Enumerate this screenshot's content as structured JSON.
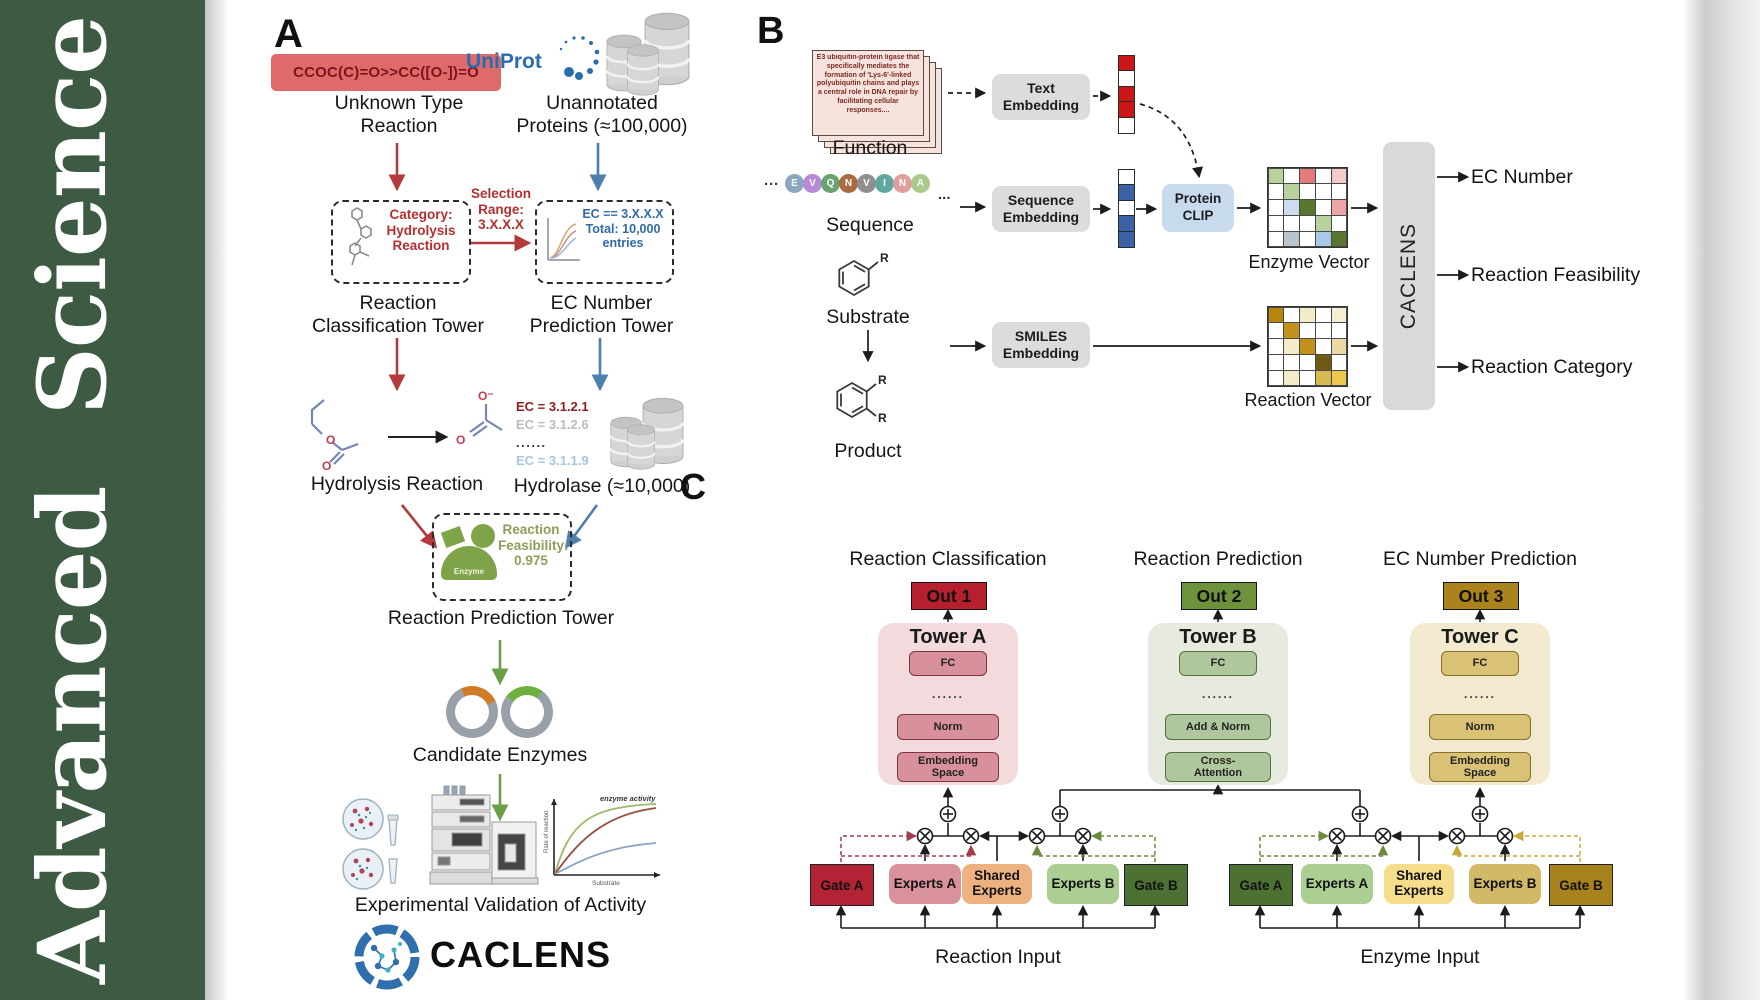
{
  "sidebar": {
    "journal_title": "Advanced Science"
  },
  "panelA": {
    "label": "A",
    "smiles": "CCOC(C)=O>>CC([O-])=O",
    "uniprot": "UniProt",
    "unknown_reaction": "Unknown Type\nReaction",
    "unannotated_proteins": "Unannotated\nProteins (≈100,000)",
    "selection_range": "Selection\nRange:\n3.X.X.X",
    "category": "Category:\nHydrolysis\nReaction",
    "ec_filter": "EC == 3.X.X.X\nTotal: 10,000\nentries",
    "classification_tower": "Reaction\nClassification Tower",
    "ec_tower": "EC Number\nPrediction Tower",
    "hydrolysis_reaction": "Hydrolysis Reaction",
    "ec_list": [
      "EC = 3.1.2.1",
      "EC = 3.1.2.6",
      "......",
      "EC = 3.1.1.9"
    ],
    "hydrolase": "Hydrolase (≈10,000)",
    "enzyme_label": "Enzyme",
    "feasibility": "Reaction\nFeasibility:\n0.975",
    "prediction_tower": "Reaction Prediction Tower",
    "candidate_enzymes": "Candidate Enzymes",
    "validation": "Experimental Validation of Activity",
    "logo_text": "CACLENS",
    "atoms": {
      "ester_o1": "O",
      "ester_o2": "O",
      "acetate_o_minus": "O⁻",
      "acetate_o": "O"
    },
    "plot": {
      "annotation": "enzyme activity",
      "ylabel": "Rate of reaction",
      "xlabel": "Substrate"
    }
  },
  "panelB": {
    "label": "B",
    "function_text": "E3 ubiquitin-protein ligase that specifically mediates the formation of 'Lys-6'-linked polyubiquitin chains and plays a central role in DNA repair by facilitating cellular responses....",
    "function_label": "Function",
    "ellipsis_left": "···",
    "ellipsis_right": "...",
    "residues": [
      {
        "letter": "E",
        "color": "#8ba6bf"
      },
      {
        "letter": "V",
        "color": "#b78ad6"
      },
      {
        "letter": "Q",
        "color": "#69a46e"
      },
      {
        "letter": "N",
        "color": "#a96a40"
      },
      {
        "letter": "V",
        "color": "#8f8f8f"
      },
      {
        "letter": "I",
        "color": "#5fa8a0"
      },
      {
        "letter": "N",
        "color": "#de9f9c"
      },
      {
        "letter": "A",
        "color": "#aac98c"
      }
    ],
    "sequence_label": "Sequence",
    "substrate_label": "Substrate",
    "product_label": "Product",
    "substrate_r": "R",
    "product_r1": "R",
    "product_r2": "R",
    "text_embedding": "Text\nEmbedding",
    "sequence_embedding": "Sequence\nEmbedding",
    "smiles_embedding": "SMILES\nEmbedding",
    "protein_clip": "Protein\nCLIP",
    "enzyme_vector_label": "Enzyme Vector",
    "reaction_vector_label": "Reaction Vector",
    "caclens": "CACLENS",
    "outputs": [
      "EC Number",
      "Reaction Feasibility",
      "Reaction Category"
    ],
    "text_vector": [
      "#cc1717",
      "#ffffff",
      "#cc1717",
      "#cc1717",
      "#ffffff"
    ],
    "sequence_vector": [
      "#ffffff",
      "#3a62a4",
      "#ffffff",
      "#3a62a4",
      "#3a62a4"
    ],
    "enzyme_grid": [
      [
        "#b7d29b",
        "#ffffff",
        "#e27b7b",
        "#ffffff",
        "#f4c9c9"
      ],
      [
        "#ffffff",
        "#b7d29b",
        "#ffffff",
        "#ffffff",
        "#ffffff"
      ],
      [
        "#ffffff",
        "#ccdcee",
        "#59772f",
        "#ffffff",
        "#eda5a5"
      ],
      [
        "#ffffff",
        "#ffffff",
        "#ffffff",
        "#b7d29b",
        "#ffffff"
      ],
      [
        "#ffffff",
        "#b9c4cc",
        "#ffffff",
        "#a9c9e8",
        "#59772f"
      ]
    ],
    "reaction_grid": [
      [
        "#b8860b",
        "#ffffff",
        "#f4ecc8",
        "#ffffff",
        "#f6eed2"
      ],
      [
        "#ffffff",
        "#c3921c",
        "#ffffff",
        "#ffffff",
        "#ffffff"
      ],
      [
        "#ffffff",
        "#f4ecc8",
        "#c3921c",
        "#ffffff",
        "#ead9a4"
      ],
      [
        "#ffffff",
        "#ffffff",
        "#ffffff",
        "#6e5a12",
        "#ffffff"
      ],
      [
        "#ffffff",
        "#f4ecc8",
        "#ffffff",
        "#d6ba50",
        "#ecc94e"
      ]
    ]
  },
  "panelC": {
    "label": "C",
    "towers": [
      {
        "title": "Reaction Classification",
        "out": "Out 1",
        "name": "Tower A",
        "fc": "FC",
        "dots": "......",
        "mid": "Norm",
        "bottom": "Embedding\nSpace"
      },
      {
        "title": "Reaction Prediction",
        "out": "Out 2",
        "name": "Tower B",
        "fc": "FC",
        "dots": "......",
        "mid": "Add & Norm",
        "bottom": "Cross-\nAttention"
      },
      {
        "title": "EC Number Prediction",
        "out": "Out 3",
        "name": "Tower C",
        "fc": "FC",
        "dots": "......",
        "mid": "Norm",
        "bottom": "Embedding\nSpace"
      }
    ],
    "moe_left": {
      "gate_a": "Gate A",
      "experts_a": "Experts A",
      "shared": "Shared\nExperts",
      "experts_b": "Experts B",
      "gate_b": "Gate B",
      "input_label": "Reaction Input"
    },
    "moe_right": {
      "gate_a": "Gate A",
      "experts_a": "Experts A",
      "shared": "Shared\nExperts",
      "experts_b": "Experts B",
      "gate_b": "Gate B",
      "input_label": "Enzyme Input"
    }
  },
  "colors": {
    "sidebar_green": "#3d5b42",
    "arrow_red": "#b23a3a",
    "arrow_blue": "#4d7fae",
    "arrow_green": "#6f9e48",
    "smiles_bg": "#e06a6a",
    "smiles_text": "#7c1420",
    "uniprot_blue": "#2a6cb0",
    "out1": "#b51f2e",
    "out2": "#6d923b",
    "out3": "#aa831c",
    "tower_a_bg": "#f2dadd",
    "tower_b_bg": "#e7eade",
    "tower_c_bg": "#f2e9cf",
    "tower_a_box": "#d8919c",
    "tower_b_box": "#aec79c",
    "tower_c_box": "#d9c276",
    "gate_a_left": "#b22335",
    "experts_a_left": "#d9929c",
    "shared_left": "#eeb281",
    "experts_b_left": "#abce93",
    "gate_b_left": "#4d7033",
    "gate_a_right": "#4d7033",
    "experts_a_right": "#abce93",
    "shared_right": "#f6dd8c",
    "experts_b_right": "#d2b967",
    "gate_b_right": "#a8821d"
  }
}
